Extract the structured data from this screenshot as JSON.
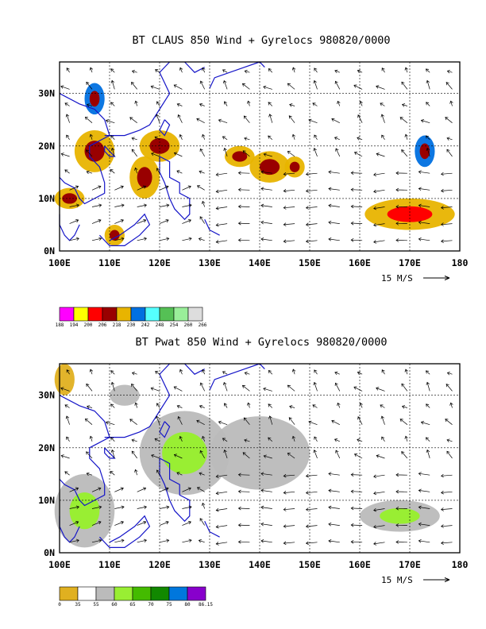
{
  "maps": [
    {
      "title": "BT CLAUS 850 Wind + Gyrelocs 980820/0000",
      "lon_ticks": [
        "100E",
        "110E",
        "120E",
        "130E",
        "140E",
        "150E",
        "160E",
        "170E",
        "180"
      ],
      "lat_ticks": [
        "0N",
        "10N",
        "20N",
        "30N"
      ],
      "reference_vector": "15 M/S",
      "colorbar": {
        "colors": [
          "#ff00ff",
          "#ffff00",
          "#ff0000",
          "#990000",
          "#e8b400",
          "#0070e0",
          "#55ffff",
          "#55c055",
          "#99ee99",
          "#dddddd"
        ],
        "labels": [
          "188",
          "194",
          "200",
          "206",
          "218",
          "230",
          "242",
          "248",
          "254",
          "260",
          "266"
        ]
      },
      "fields": [
        {
          "lon": 107,
          "lat": 29,
          "shade": "#0070e0",
          "r": [
            2,
            3
          ],
          "core": "#990000"
        },
        {
          "lon": 107,
          "lat": 19,
          "shade": "#e8b400",
          "r": [
            4,
            4
          ],
          "core": "#990000"
        },
        {
          "lon": 102,
          "lat": 10,
          "shade": "#e8b400",
          "r": [
            3,
            2
          ],
          "core": "#990000"
        },
        {
          "lon": 111,
          "lat": 3,
          "shade": "#e8b400",
          "r": [
            2,
            2
          ],
          "core": "#990000"
        },
        {
          "lon": 120,
          "lat": 20,
          "shade": "#e8b400",
          "r": [
            4,
            3
          ],
          "core": "#990000"
        },
        {
          "lon": 117,
          "lat": 14,
          "shade": "#e8b400",
          "r": [
            3,
            4
          ],
          "core": "#990000"
        },
        {
          "lon": 136,
          "lat": 18,
          "shade": "#e8b400",
          "r": [
            3,
            2
          ],
          "core": "#990000"
        },
        {
          "lon": 142,
          "lat": 16,
          "shade": "#e8b400",
          "r": [
            4,
            3
          ],
          "core": "#990000"
        },
        {
          "lon": 147,
          "lat": 16,
          "shade": "#e8b400",
          "r": [
            2,
            2
          ],
          "core": "#990000"
        },
        {
          "lon": 170,
          "lat": 7,
          "shade": "#e8b400",
          "r": [
            9,
            3
          ],
          "core": "#ff0000"
        },
        {
          "lon": 173,
          "lat": 19,
          "shade": "#0070e0",
          "r": [
            2,
            3
          ],
          "core": "#990000"
        }
      ]
    },
    {
      "title": "BT Pwat 850 Wind + Gyrelocs 980820/0000",
      "lon_ticks": [
        "100E",
        "110E",
        "120E",
        "130E",
        "140E",
        "150E",
        "160E",
        "170E",
        "180"
      ],
      "lat_ticks": [
        "0N",
        "10N",
        "20N",
        "30N"
      ],
      "reference_vector": "15 M/S",
      "colorbar": {
        "colors": [
          "#e0b020",
          "#ffffff",
          "#bbbbbb",
          "#99ee33",
          "#44bb00",
          "#118800",
          "#0077dd",
          "#8800cc"
        ],
        "labels": [
          "0",
          "35",
          "55",
          "60",
          "65",
          "70",
          "75",
          "80",
          "86.15"
        ]
      },
      "fields": [
        {
          "lon": 101,
          "lat": 33,
          "shade": "#e0b020",
          "r": [
            2,
            3
          ],
          "core": ""
        },
        {
          "lon": 125,
          "lat": 19,
          "shade": "#bbbbbb",
          "r": [
            9,
            8
          ],
          "core": "#99ee33"
        },
        {
          "lon": 140,
          "lat": 19,
          "shade": "#bbbbbb",
          "r": [
            10,
            7
          ],
          "core": ""
        },
        {
          "lon": 105,
          "lat": 8,
          "shade": "#bbbbbb",
          "r": [
            6,
            7
          ],
          "core": "#99ee33"
        },
        {
          "lon": 168,
          "lat": 7,
          "shade": "#bbbbbb",
          "r": [
            8,
            3
          ],
          "core": "#99ee33"
        },
        {
          "lon": 113,
          "lat": 30,
          "shade": "#bbbbbb",
          "r": [
            3,
            2
          ],
          "core": ""
        }
      ]
    }
  ]
}
